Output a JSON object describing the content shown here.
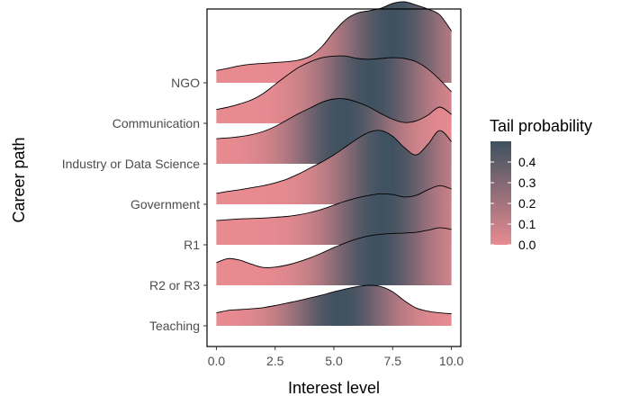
{
  "chart_data": {
    "type": "ridgeline",
    "title": "",
    "xlabel": "Interest level",
    "ylabel": "Career path",
    "xlim": [
      -0.4,
      10.4
    ],
    "x_ticks": [
      0.0,
      2.5,
      5.0,
      7.5,
      10.0
    ],
    "x_tick_labels": [
      "0.0",
      "2.5",
      "5.0",
      "7.5",
      "10.0"
    ],
    "grid": false,
    "fill_gradient": {
      "variable": "Tail probability",
      "low_color": "#e88b91",
      "high_color": "#3e5160",
      "range": [
        0.0,
        0.5
      ]
    },
    "legend": {
      "title": "Tail probability",
      "position": "right",
      "breaks": [
        0.4,
        0.3,
        0.2,
        0.1,
        0.0
      ],
      "break_labels": [
        "0.4",
        "0.3",
        "0.2",
        "0.1",
        "0.0"
      ]
    },
    "series": [
      {
        "name": "Teaching",
        "center": 5.3,
        "x": [
          0,
          0.5,
          1,
          1.5,
          2,
          2.5,
          3,
          3.5,
          4,
          4.5,
          5,
          5.5,
          6,
          6.5,
          7,
          7.5,
          8,
          8.5,
          9,
          9.5,
          10
        ],
        "density": [
          0.32,
          0.38,
          0.4,
          0.42,
          0.45,
          0.5,
          0.56,
          0.62,
          0.69,
          0.76,
          0.84,
          0.91,
          0.97,
          1.0,
          0.97,
          0.84,
          0.62,
          0.44,
          0.36,
          0.32,
          0.3
        ]
      },
      {
        "name": "R2 or R3",
        "center": 6.8,
        "x": [
          0,
          0.5,
          1,
          1.5,
          2,
          2.5,
          3,
          3.5,
          4,
          4.5,
          5,
          5.5,
          6,
          6.5,
          7,
          7.5,
          8,
          8.5,
          9,
          9.5,
          10
        ],
        "density": [
          0.56,
          0.66,
          0.62,
          0.52,
          0.44,
          0.45,
          0.5,
          0.58,
          0.68,
          0.8,
          0.93,
          1.05,
          1.15,
          1.22,
          1.26,
          1.28,
          1.29,
          1.31,
          1.36,
          1.42,
          1.38
        ]
      },
      {
        "name": "R1",
        "center": 7.0,
        "x": [
          0,
          0.5,
          1,
          1.5,
          2,
          2.5,
          3,
          3.5,
          4,
          4.5,
          5,
          5.5,
          6,
          6.5,
          7,
          7.5,
          8,
          8.5,
          9,
          9.5,
          10
        ],
        "density": [
          0.6,
          0.62,
          0.64,
          0.65,
          0.66,
          0.68,
          0.7,
          0.74,
          0.8,
          0.88,
          0.98,
          1.08,
          1.16,
          1.22,
          1.26,
          1.24,
          1.18,
          1.22,
          1.36,
          1.46,
          1.38
        ]
      },
      {
        "name": "Government",
        "center": 7.3,
        "x": [
          0,
          0.5,
          1,
          1.5,
          2,
          2.5,
          3,
          3.5,
          4,
          4.5,
          5,
          5.5,
          6,
          6.5,
          7,
          7.5,
          8,
          8.5,
          9,
          9.5,
          10
        ],
        "density": [
          0.27,
          0.32,
          0.36,
          0.41,
          0.46,
          0.53,
          0.62,
          0.75,
          0.9,
          1.05,
          1.22,
          1.42,
          1.62,
          1.78,
          1.82,
          1.68,
          1.4,
          1.22,
          1.48,
          1.82,
          1.55
        ]
      },
      {
        "name": "Industry or Data Science",
        "center": 5.4,
        "x": [
          0,
          0.5,
          1,
          1.5,
          2,
          2.5,
          3,
          3.5,
          4,
          4.5,
          5,
          5.5,
          6,
          6.5,
          7,
          7.5,
          8,
          8.5,
          9,
          9.5,
          10
        ],
        "density": [
          0.62,
          0.64,
          0.67,
          0.72,
          0.8,
          0.92,
          1.08,
          1.24,
          1.38,
          1.52,
          1.6,
          1.6,
          1.52,
          1.4,
          1.24,
          1.1,
          1.02,
          1.06,
          1.2,
          1.4,
          1.22
        ]
      },
      {
        "name": "Communication",
        "center": 6.6,
        "x": [
          0,
          0.5,
          1,
          1.5,
          2,
          2.5,
          3,
          3.5,
          4,
          4.5,
          5,
          5.5,
          6,
          6.5,
          7,
          7.5,
          8,
          8.5,
          9,
          9.5,
          10
        ],
        "density": [
          0.34,
          0.4,
          0.48,
          0.58,
          0.74,
          0.96,
          1.18,
          1.38,
          1.52,
          1.62,
          1.66,
          1.66,
          1.6,
          1.58,
          1.6,
          1.62,
          1.6,
          1.52,
          1.34,
          1.08,
          0.78
        ]
      },
      {
        "name": "NGO",
        "center": 7.5,
        "x": [
          0,
          0.5,
          1,
          1.5,
          2,
          2.5,
          3,
          3.5,
          4,
          4.5,
          5,
          5.5,
          6,
          6.5,
          7,
          7.5,
          8,
          8.5,
          9,
          9.5,
          10
        ],
        "density": [
          0.3,
          0.36,
          0.42,
          0.46,
          0.48,
          0.5,
          0.52,
          0.56,
          0.66,
          0.9,
          1.26,
          1.56,
          1.72,
          1.78,
          1.84,
          1.96,
          2.0,
          1.92,
          1.82,
          1.68,
          1.28
        ]
      }
    ]
  }
}
